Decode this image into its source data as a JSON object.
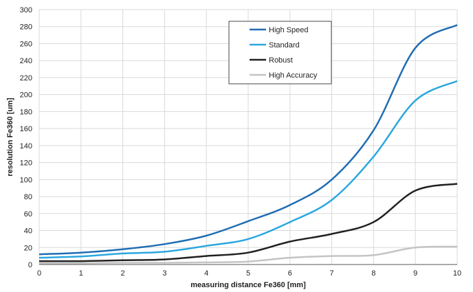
{
  "chart_data": {
    "type": "line",
    "title": "",
    "xlabel": "measuring distance Fe360 [mm]",
    "ylabel": "resolution Fe360 [um]",
    "xlim": [
      0,
      10
    ],
    "ylim": [
      0,
      300
    ],
    "xticks": [
      0,
      1,
      2,
      3,
      4,
      5,
      6,
      7,
      8,
      9,
      10
    ],
    "yticks": [
      0,
      20,
      40,
      60,
      80,
      100,
      120,
      140,
      160,
      180,
      200,
      220,
      240,
      260,
      280,
      300
    ],
    "grid": true,
    "legend_position": "top-right",
    "x": [
      0,
      1,
      2,
      3,
      4,
      5,
      6,
      7,
      8,
      9,
      10
    ],
    "series": [
      {
        "name": "High Speed",
        "color": "#1f6db3",
        "values": [
          12,
          14,
          18,
          24,
          34,
          51,
          70,
          100,
          158,
          255,
          282
        ]
      },
      {
        "name": "Standard",
        "color": "#2aa7df",
        "values": [
          8,
          9.5,
          13,
          15,
          22,
          30,
          50,
          76,
          127,
          193,
          216
        ]
      },
      {
        "name": "Robust",
        "color": "#231f20",
        "values": [
          4,
          4,
          5,
          6,
          10,
          14,
          27,
          36,
          50,
          87,
          95
        ]
      },
      {
        "name": "High Accuracy",
        "color": "#c4c4c4",
        "values": [
          1.5,
          1.5,
          2,
          2,
          2.5,
          3.5,
          8,
          10,
          11,
          20,
          21
        ]
      }
    ]
  }
}
